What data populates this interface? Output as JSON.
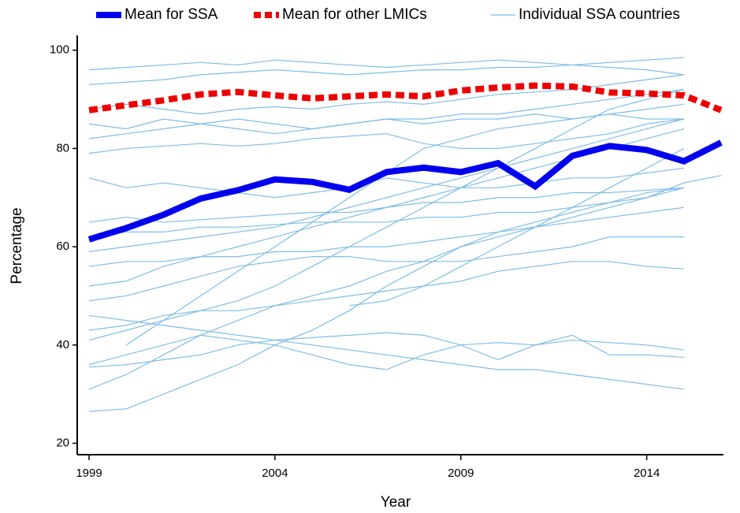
{
  "chart_data": {
    "type": "line",
    "x_label": "Year",
    "y_label": "Percentage",
    "x": [
      1999,
      2000,
      2001,
      2002,
      2003,
      2004,
      2005,
      2006,
      2007,
      2008,
      2009,
      2010,
      2011,
      2012,
      2013,
      2014,
      2015,
      2016
    ],
    "xlim": [
      1999,
      2016
    ],
    "xticks": [
      1999,
      2004,
      2009,
      2014
    ],
    "ylim": [
      18,
      103
    ],
    "yticks": [
      20,
      40,
      60,
      80,
      100
    ],
    "series": [
      {
        "name": "Mean for SSA",
        "color": "#0000ee",
        "values": [
          61.5,
          63.8,
          66.5,
          69.8,
          71.5,
          73.7,
          73.2,
          71.6,
          75.2,
          76.1,
          75.2,
          77,
          72.3,
          78.5,
          80.5,
          79.7,
          77.4,
          81.2
        ]
      },
      {
        "name": "Mean for other LMICs",
        "color": "#ee0000",
        "dashed": true,
        "values": [
          87.8,
          88.8,
          89.8,
          91,
          91.5,
          90.8,
          90.2,
          90.6,
          91,
          90.6,
          91.8,
          92.4,
          92.8,
          92.6,
          91.4,
          91.2,
          90.8,
          87.8
        ]
      },
      {
        "name": "Individual SSA countries",
        "color": "#7fbde6",
        "lines": [
          [
            96,
            96.5,
            97,
            97.5,
            97,
            98,
            97.5,
            97,
            96.5,
            97,
            97.5,
            98,
            97.5,
            97,
            96.5,
            96,
            95,
            null
          ],
          [
            93,
            93.5,
            94,
            95,
            95.5,
            96,
            95.5,
            95,
            95.5,
            96,
            96,
            96.5,
            96.5,
            97,
            97.5,
            98,
            98.5,
            null
          ],
          [
            88,
            89,
            88,
            87,
            88,
            88.5,
            88,
            89,
            89.5,
            89,
            90,
            91,
            91.5,
            92,
            93,
            94,
            95,
            null
          ],
          [
            85,
            84,
            86,
            85,
            86,
            85,
            84,
            85,
            86,
            86,
            87,
            87,
            88,
            89,
            90,
            91,
            92,
            null
          ],
          [
            82,
            83,
            84,
            85,
            84,
            83,
            84,
            85,
            86,
            85,
            86,
            86,
            87,
            86,
            87,
            86,
            86,
            null
          ],
          [
            79,
            80,
            80.5,
            81,
            80.5,
            81,
            82,
            82.5,
            83,
            81,
            80,
            80,
            81,
            82,
            83,
            85,
            86,
            null
          ],
          [
            74,
            72,
            73,
            72,
            71,
            70,
            71,
            72,
            74,
            73,
            72,
            72,
            73,
            74,
            74,
            75,
            76,
            null
          ],
          [
            65,
            66,
            65,
            65.5,
            66,
            66.5,
            67,
            67,
            68,
            69,
            69,
            70,
            70,
            71,
            71,
            71.5,
            72,
            null
          ],
          [
            62,
            63,
            63,
            64,
            64,
            64.5,
            65,
            65,
            65,
            66,
            66,
            67,
            67,
            68,
            69,
            70,
            73,
            74.5
          ],
          [
            59,
            60,
            61,
            62,
            63,
            64,
            66,
            68,
            70,
            72,
            74,
            76,
            78,
            80,
            82,
            84,
            86,
            null
          ],
          [
            56,
            57,
            57,
            58,
            58,
            59,
            59,
            60,
            60,
            61,
            62,
            63,
            64,
            65,
            66,
            67,
            68,
            null
          ],
          [
            52,
            53,
            56,
            58,
            60,
            62,
            64,
            66,
            68,
            70,
            72,
            74,
            76,
            78,
            80,
            82,
            84,
            null
          ],
          [
            49,
            50,
            52,
            54,
            56,
            57,
            58,
            58,
            57,
            57,
            57,
            58,
            59,
            60,
            62,
            62,
            62,
            null
          ],
          [
            46,
            45,
            44,
            43,
            42,
            41,
            40,
            39,
            38,
            37,
            36,
            35,
            35,
            34,
            33,
            32,
            31,
            null
          ],
          [
            43,
            44,
            46,
            47,
            47,
            48,
            49,
            50,
            51,
            52,
            53,
            55,
            56,
            57,
            57,
            56,
            55.5,
            null
          ],
          [
            41,
            43,
            45,
            47,
            49,
            52,
            56,
            60,
            64,
            68,
            72,
            76,
            80,
            84,
            88,
            90,
            92,
            null
          ],
          [
            35.5,
            36,
            37,
            38,
            40,
            41,
            41.5,
            42,
            42.5,
            42,
            40,
            40.5,
            40,
            41,
            40.5,
            40,
            39,
            null
          ],
          [
            31,
            34,
            38,
            42,
            45,
            48,
            50,
            52,
            55,
            57,
            60,
            62,
            64,
            66,
            68,
            70,
            72,
            null
          ],
          [
            26.5,
            27,
            30,
            33,
            36,
            40,
            43,
            47,
            52,
            56,
            60,
            63,
            65,
            67,
            69,
            71,
            72,
            null
          ],
          [
            36,
            38,
            40,
            42,
            41,
            40,
            38,
            36,
            35,
            38,
            40,
            37,
            40,
            42,
            38,
            38,
            37.5,
            null
          ],
          [
            null,
            null,
            null,
            null,
            null,
            null,
            null,
            48,
            49,
            52,
            56,
            60,
            64,
            68,
            72,
            76,
            80,
            null
          ],
          [
            null,
            40,
            45,
            50,
            55,
            60,
            65,
            70,
            75,
            80,
            82,
            84,
            85,
            86,
            87,
            88,
            89,
            null
          ]
        ]
      }
    ]
  }
}
